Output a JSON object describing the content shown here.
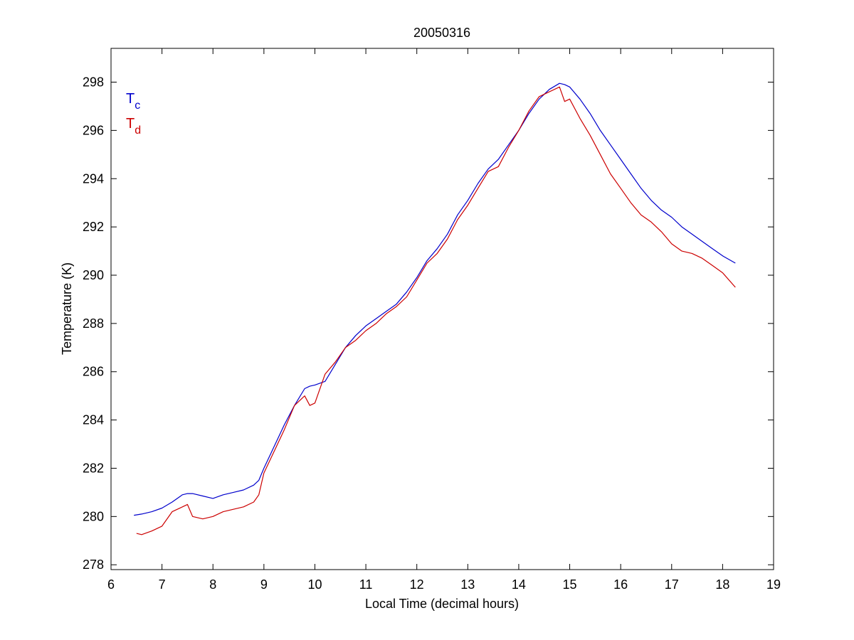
{
  "chart_data": {
    "type": "line",
    "title": "20050316",
    "xlabel": "Local Time (decimal hours)",
    "ylabel": "Temperature (K)",
    "xlim": [
      6,
      19
    ],
    "ylim": [
      277.8,
      299.4
    ],
    "xticks": [
      6,
      7,
      8,
      9,
      10,
      11,
      12,
      13,
      14,
      15,
      16,
      17,
      18,
      19
    ],
    "yticks": [
      278,
      280,
      282,
      284,
      286,
      288,
      290,
      292,
      294,
      296,
      298
    ],
    "grid": false,
    "legend": {
      "placement": "top-left",
      "entries": [
        {
          "main": "T",
          "sub": "c",
          "color": "#0000cc"
        },
        {
          "main": "T",
          "sub": "d",
          "color": "#cc0000"
        }
      ]
    },
    "series": [
      {
        "color": "#0000cc",
        "x": [
          6.45,
          6.6,
          6.8,
          7.0,
          7.2,
          7.4,
          7.5,
          7.6,
          7.8,
          8.0,
          8.2,
          8.4,
          8.6,
          8.8,
          8.9,
          9.0,
          9.2,
          9.4,
          9.6,
          9.8,
          9.9,
          10.0,
          10.2,
          10.4,
          10.6,
          10.8,
          11.0,
          11.2,
          11.4,
          11.6,
          11.8,
          12.0,
          12.2,
          12.4,
          12.6,
          12.8,
          13.0,
          13.2,
          13.4,
          13.6,
          13.8,
          14.0,
          14.2,
          14.4,
          14.6,
          14.8,
          14.9,
          15.0,
          15.2,
          15.4,
          15.6,
          15.8,
          16.0,
          16.2,
          16.4,
          16.6,
          16.8,
          17.0,
          17.2,
          17.4,
          17.6,
          17.8,
          18.0,
          18.25
        ],
        "y": [
          280.05,
          280.1,
          280.2,
          280.35,
          280.6,
          280.9,
          280.95,
          280.95,
          280.85,
          280.75,
          280.9,
          281.0,
          281.1,
          281.3,
          281.5,
          282.0,
          282.9,
          283.8,
          284.6,
          285.3,
          285.4,
          285.45,
          285.6,
          286.3,
          287.0,
          287.5,
          287.9,
          288.2,
          288.5,
          288.8,
          289.3,
          289.9,
          290.6,
          291.1,
          291.7,
          292.5,
          293.1,
          293.8,
          294.4,
          294.8,
          295.4,
          296.0,
          296.7,
          297.3,
          297.7,
          297.95,
          297.9,
          297.8,
          297.3,
          296.7,
          296.0,
          295.4,
          294.8,
          294.2,
          293.6,
          293.1,
          292.7,
          292.4,
          292.0,
          291.7,
          291.4,
          291.1,
          290.8,
          290.5
        ]
      },
      {
        "color": "#cc0000",
        "x": [
          6.5,
          6.6,
          6.8,
          7.0,
          7.2,
          7.4,
          7.5,
          7.6,
          7.8,
          8.0,
          8.2,
          8.4,
          8.6,
          8.8,
          8.9,
          9.0,
          9.2,
          9.4,
          9.6,
          9.8,
          9.9,
          10.0,
          10.2,
          10.4,
          10.6,
          10.8,
          11.0,
          11.2,
          11.4,
          11.6,
          11.8,
          12.0,
          12.2,
          12.4,
          12.6,
          12.8,
          13.0,
          13.2,
          13.4,
          13.6,
          13.8,
          14.0,
          14.2,
          14.4,
          14.6,
          14.8,
          14.9,
          15.0,
          15.2,
          15.4,
          15.6,
          15.8,
          16.0,
          16.2,
          16.4,
          16.6,
          16.8,
          17.0,
          17.2,
          17.4,
          17.6,
          17.8,
          18.0,
          18.25
        ],
        "y": [
          279.3,
          279.25,
          279.4,
          279.6,
          280.2,
          280.4,
          280.5,
          280.0,
          279.9,
          280.0,
          280.2,
          280.3,
          280.4,
          280.6,
          280.9,
          281.8,
          282.7,
          283.6,
          284.6,
          285.0,
          284.6,
          284.7,
          285.9,
          286.4,
          287.0,
          287.3,
          287.7,
          288.0,
          288.4,
          288.7,
          289.1,
          289.8,
          290.5,
          290.9,
          291.5,
          292.3,
          292.9,
          293.6,
          294.3,
          294.5,
          295.3,
          296.0,
          296.8,
          297.4,
          297.6,
          297.8,
          297.2,
          297.3,
          296.5,
          295.8,
          295.0,
          294.2,
          293.6,
          293.0,
          292.5,
          292.2,
          291.8,
          291.3,
          291.0,
          290.9,
          290.7,
          290.4,
          290.1,
          289.5
        ]
      }
    ]
  }
}
